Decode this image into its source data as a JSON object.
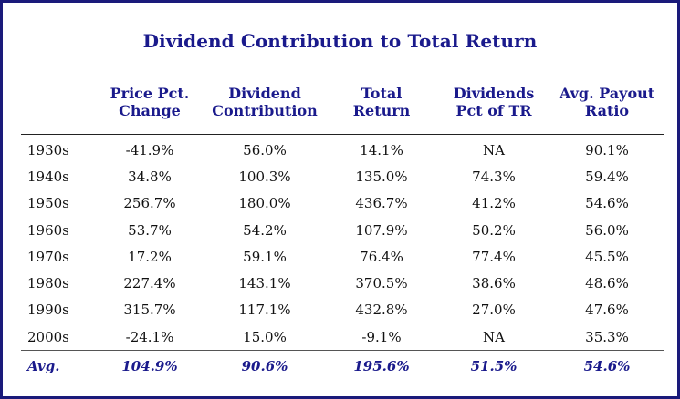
{
  "title": "Dividend Contribution to Total Return",
  "headers": [
    "",
    "Price Pct.\nChange",
    "Dividend\nContribution",
    "Total\nReturn",
    "Dividends\nPct of TR",
    "Avg. Payout\nRatio"
  ],
  "rows": [
    [
      "1930s",
      "-41.9%",
      "56.0%",
      "14.1%",
      "NA",
      "90.1%"
    ],
    [
      "1940s",
      "34.8%",
      "100.3%",
      "135.0%",
      "74.3%",
      "59.4%"
    ],
    [
      "1950s",
      "256.7%",
      "180.0%",
      "436.7%",
      "41.2%",
      "54.6%"
    ],
    [
      "1960s",
      "53.7%",
      "54.2%",
      "107.9%",
      "50.2%",
      "56.0%"
    ],
    [
      "1970s",
      "17.2%",
      "59.1%",
      "76.4%",
      "77.4%",
      "45.5%"
    ],
    [
      "1980s",
      "227.4%",
      "143.1%",
      "370.5%",
      "38.6%",
      "48.6%"
    ],
    [
      "1990s",
      "315.7%",
      "117.1%",
      "432.8%",
      "27.0%",
      "47.6%"
    ],
    [
      "2000s",
      "-24.1%",
      "15.0%",
      "-9.1%",
      "NA",
      "35.3%"
    ]
  ],
  "average": [
    "Avg.",
    "104.9%",
    "90.6%",
    "195.6%",
    "51.5%",
    "54.6%"
  ],
  "colors": {
    "accent": "#1a1a8c",
    "border": "#1a1a7a",
    "text": "#111111"
  }
}
